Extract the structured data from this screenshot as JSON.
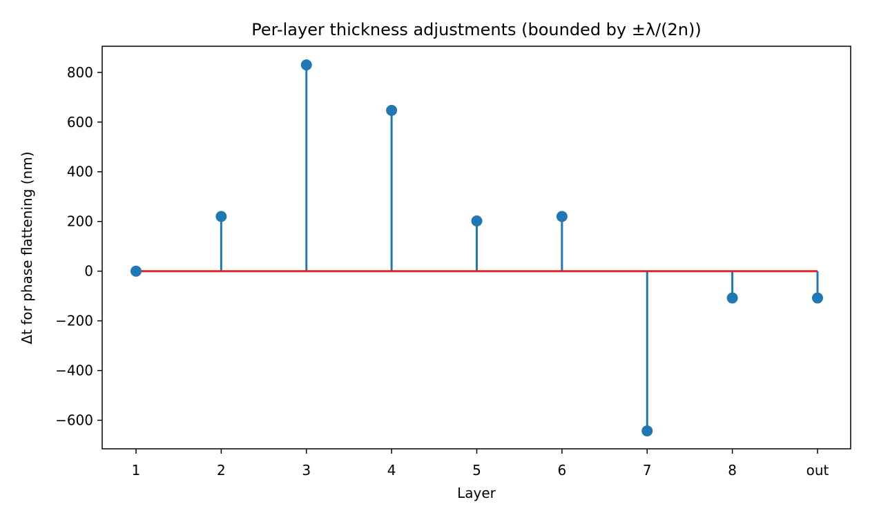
{
  "chart_data": {
    "type": "stem",
    "title": "Per-layer thickness adjustments (bounded by ±λ/(2n))",
    "xlabel": "Layer",
    "ylabel": "Δt for phase flattening (nm)",
    "categories": [
      "1",
      "2",
      "3",
      "4",
      "5",
      "6",
      "7",
      "8",
      "out"
    ],
    "values": [
      0,
      220,
      830,
      647,
      202,
      220,
      -643,
      -108,
      -108
    ],
    "ylim": [
      -715,
      905
    ],
    "yticks": [
      800,
      600,
      400,
      200,
      0,
      -200,
      -400,
      -600
    ],
    "ytick_labels": [
      "800",
      "600",
      "400",
      "200",
      "0",
      "−200",
      "−400",
      "−600"
    ],
    "baseline": 0,
    "grid": false,
    "colors": {
      "stem": "#1f77b4",
      "marker": "#1f77b4",
      "baseline": "#d62728"
    }
  }
}
